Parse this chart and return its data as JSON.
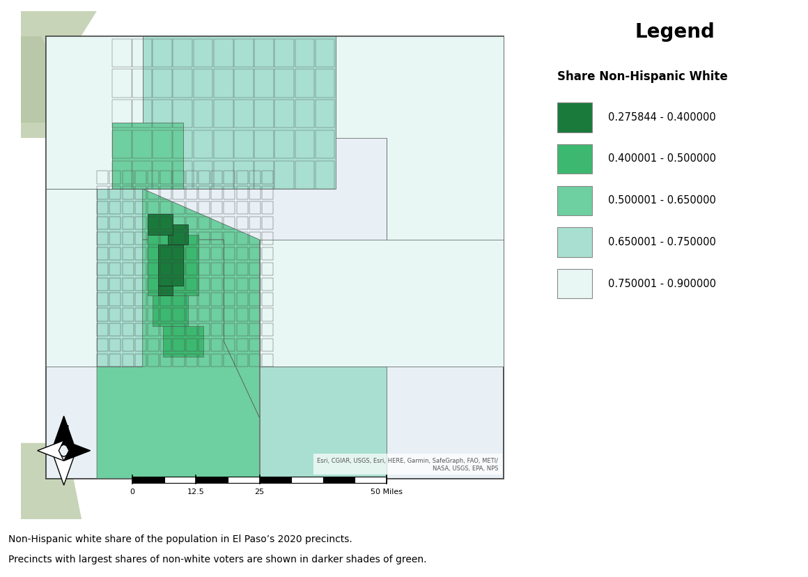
{
  "legend_title": "Legend",
  "legend_subtitle": "Share Non-Hispanic White",
  "legend_entries": [
    {
      "range": "0.275844 - 0.400000",
      "color": "#1a7a3c"
    },
    {
      "range": "0.400001 - 0.500000",
      "color": "#3db870"
    },
    {
      "range": "0.500001 - 0.650000",
      "color": "#6ecfa0"
    },
    {
      "range": "0.650001 - 0.750000",
      "color": "#a8dfd0"
    },
    {
      "range": "0.750001 - 0.900000",
      "color": "#e8f7f4"
    }
  ],
  "caption_line1": "Non-Hispanic white share of the population in El Paso’s 2020 precincts.",
  "caption_line2": "Precincts with largest shares of non-white voters are shown in darker shades of green.",
  "attribution": "Esri, CGIAR, USGS, Esri, HERE, Garmin, SafeGraph, FAO, METI/\nNASA, USGS, EPA, NPS",
  "colors": {
    "darkest_green": "#1a7a3c",
    "dark_green": "#3db870",
    "medium_green": "#6ecfa0",
    "light_blue_green": "#a8dfd0",
    "very_light": "#e8f7f4",
    "map_bg": "#e8f0f5",
    "map_outline": "#555555",
    "terrain_light": "#e8e8d8",
    "map_border": "#333333"
  }
}
